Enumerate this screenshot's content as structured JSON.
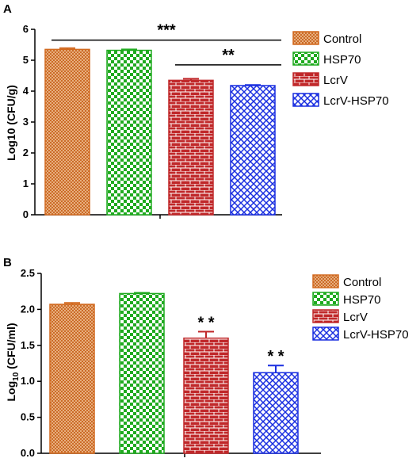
{
  "chart_data": [
    {
      "panel": "A",
      "type": "bar",
      "categories": [
        "Control",
        "HSP70",
        "LcrV",
        "LcrV-HSP70"
      ],
      "values": [
        5.35,
        5.32,
        4.35,
        4.18
      ],
      "errors": [
        0.04,
        0.03,
        0.05,
        0.02
      ],
      "ylabel": "Log10 (CFU/g)",
      "ylim": [
        0,
        6
      ],
      "yticks": [
        "0",
        "1",
        "2",
        "3",
        "4",
        "5",
        "6"
      ],
      "legend": [
        "Control",
        "HSP70",
        "LcrV",
        "LcrV-HSP70"
      ],
      "legend_position": "right",
      "annotations": [
        {
          "label": "***",
          "from": 0,
          "to": 3,
          "y": 5.65
        },
        {
          "label": "**",
          "from": 2,
          "to": 3,
          "y": 4.85
        }
      ]
    },
    {
      "panel": "B",
      "type": "bar",
      "categories": [
        "Control",
        "HSP70",
        "LcrV",
        "LcrV-HSP70"
      ],
      "values": [
        2.07,
        2.22,
        1.6,
        1.12
      ],
      "errors": [
        0.02,
        0.01,
        0.09,
        0.1
      ],
      "ylabel_main": "Log",
      "ylabel_sub": "10",
      "ylabel_rest": " (CFU/ml)",
      "ylim": [
        0,
        2.5
      ],
      "yticks": [
        "0.0",
        "0.5",
        "1.0",
        "1.5",
        "2.0",
        "2.5"
      ],
      "legend": [
        "Control",
        "HSP70",
        "LcrV",
        "LcrV-HSP70"
      ],
      "legend_position": "right",
      "annotations": [
        {
          "label": "**",
          "bar": 2
        },
        {
          "label": "**",
          "bar": 3
        }
      ]
    }
  ],
  "colors": {
    "Control": "#d2691e",
    "HSP70": "#1faa1f",
    "LcrV": "#c0282a",
    "LcrV-HSP70": "#1a2fe0"
  },
  "patterns": [
    "fine-crosshatch",
    "checkerboard",
    "brick",
    "diamond-lattice"
  ]
}
